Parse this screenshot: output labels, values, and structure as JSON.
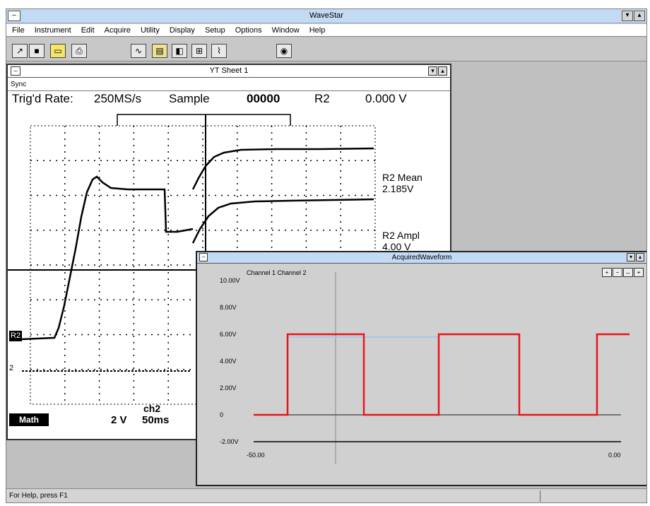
{
  "app": {
    "title": "WaveStar",
    "menu": [
      "File",
      "Instrument",
      "Edit",
      "Acquire",
      "Utility",
      "Display",
      "Setup",
      "Options",
      "Window",
      "Help"
    ],
    "toolbar_icons": [
      "pointer-icon",
      "stop-icon",
      "folder-icon",
      "print-icon",
      "waveform-icon",
      "sheet-icon",
      "chart-icon",
      "grid-icon",
      "signal-icon",
      "camera-icon"
    ]
  },
  "scope_window": {
    "title": "YT Sheet 1",
    "status": "Sync",
    "trig_label": "Trig'd Rate:",
    "rate": "250MS/s",
    "mode": "Sample",
    "mode_value": "00000",
    "ch_label": "R2",
    "ch_value": "0.000 V",
    "meas1_title": "R2 Mean",
    "meas1_value": "2.185V",
    "meas2_title": "R2 Ampl",
    "meas2_value": "4.00 V",
    "channel_marker": "R2",
    "ground_marker": "2",
    "badge": "Math",
    "scale_ch": "ch2",
    "scale_volts": "2 V",
    "scale_time": "50ms"
  },
  "logic_window": {
    "title": "AcquiredWaveform",
    "header": "Channel 1 Channel 2",
    "y_ticks": [
      "10.00V",
      "8.00V",
      "6.00V",
      "4.00V",
      "2.00V",
      "0",
      "-2.00V"
    ],
    "x_start": "-50.00",
    "x_end": "0.00",
    "colors": {
      "trace": "#e8141a",
      "edge": "#f08a6a",
      "edge_blue": "#a8c8e8",
      "baseline": "#555555"
    }
  },
  "status_bar": {
    "message": "For Help, press F1"
  }
}
